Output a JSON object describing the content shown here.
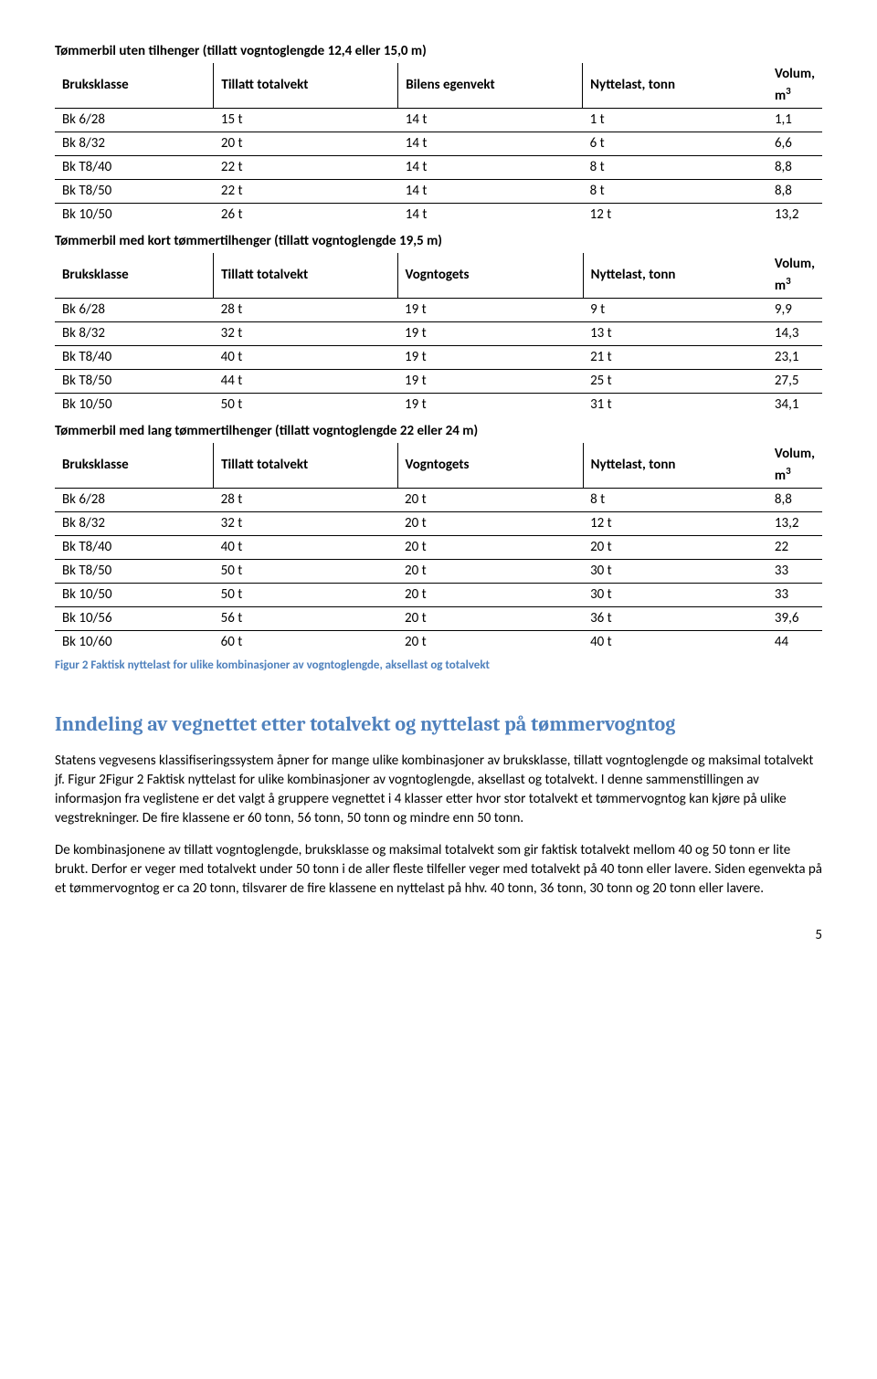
{
  "tables": [
    {
      "title": "Tømmerbil uten tilhenger (tillatt vogntoglengde 12,4 eller 15,0 m)",
      "headers": [
        "Bruksklasse",
        "Tillatt totalvekt",
        "Bilens egenvekt",
        "Nyttelast, tonn",
        "Volum, m"
      ],
      "headerSup": "3",
      "rows": [
        [
          "Bk 6/28",
          "15 t",
          "14 t",
          "1 t",
          "1,1"
        ],
        [
          "Bk 8/32",
          "20 t",
          "14 t",
          "6 t",
          "6,6"
        ],
        [
          "Bk T8/40",
          "22 t",
          "14 t",
          "8 t",
          "8,8"
        ],
        [
          "Bk T8/50",
          "22 t",
          "14 t",
          "8 t",
          "8,8"
        ],
        [
          "Bk 10/50",
          "26 t",
          "14 t",
          "12 t",
          "13,2"
        ]
      ]
    },
    {
      "title": "Tømmerbil med kort tømmertilhenger (tillatt vogntoglengde 19,5 m)",
      "headers": [
        "Bruksklasse",
        "Tillatt totalvekt",
        "Vogntogets",
        "Nyttelast, tonn",
        "Volum, m"
      ],
      "headerSup": "3",
      "rows": [
        [
          "Bk 6/28",
          "28 t",
          "19 t",
          "9 t",
          "9,9"
        ],
        [
          "Bk 8/32",
          "32 t",
          "19 t",
          "13 t",
          "14,3"
        ],
        [
          "Bk T8/40",
          "40 t",
          "19 t",
          "21 t",
          "23,1"
        ],
        [
          "Bk T8/50",
          "44 t",
          "19 t",
          "25 t",
          "27,5"
        ],
        [
          "Bk 10/50",
          "50 t",
          "19 t",
          "31 t",
          "34,1"
        ]
      ]
    },
    {
      "title": "Tømmerbil med lang tømmertilhenger (tillatt vogntoglengde 22 eller 24 m)",
      "headers": [
        "Bruksklasse",
        "Tillatt totalvekt",
        "Vogntogets",
        "Nyttelast, tonn",
        "Volum, m"
      ],
      "headerSup": "3",
      "rows": [
        [
          "Bk 6/28",
          "28 t",
          "20 t",
          "8 t",
          "8,8"
        ],
        [
          "Bk 8/32",
          "32 t",
          "20 t",
          "12 t",
          "13,2"
        ],
        [
          "Bk T8/40",
          "40 t",
          "20 t",
          "20 t",
          "22"
        ],
        [
          "Bk T8/50",
          "50 t",
          "20 t",
          "30 t",
          "33"
        ],
        [
          "Bk 10/50",
          "50 t",
          "20 t",
          "30 t",
          "33"
        ],
        [
          "Bk 10/56",
          "56 t",
          "20 t",
          "36 t",
          "39,6"
        ],
        [
          "Bk 10/60",
          "60 t",
          "20 t",
          "40 t",
          "44"
        ]
      ]
    }
  ],
  "figureCaption": "Figur 2 Faktisk nyttelast for ulike kombinasjoner av vogntoglengde, aksellast og totalvekt",
  "heading": "Inndeling av vegnettet etter totalvekt og nyttelast på tømmervogntog",
  "paragraphs": [
    "Statens vegvesens klassifiseringssystem åpner for mange ulike kombinasjoner av bruksklasse, tillatt vogntoglengde og maksimal totalvekt jf. Figur 2Figur 2 Faktisk nyttelast for ulike kombinasjoner av vogntoglengde, aksellast og totalvekt. I denne sammenstillingen av informasjon fra veglistene er det valgt å gruppere vegnettet i 4 klasser etter hvor stor totalvekt et tømmervogntog kan kjøre på ulike vegstrekninger. De fire klassene er 60 tonn, 56 tonn, 50 tonn og mindre enn 50 tonn.",
    "De kombinasjonene av tillatt vogntoglengde, bruksklasse og maksimal totalvekt som gir faktisk totalvekt mellom 40 og 50 tonn er lite brukt. Derfor er veger med totalvekt under 50 tonn i de aller fleste tilfeller veger med totalvekt på 40 tonn eller lavere. Siden egenvekta på et tømmervogntog er ca 20 tonn, tilsvarer de fire klassene en nyttelast på hhv. 40 tonn, 36 tonn, 30 tonn og 20 tonn eller lavere."
  ],
  "pageNumber": "5",
  "colors": {
    "accent": "#4f81bd",
    "text": "#000000",
    "background": "#ffffff",
    "border": "#000000"
  },
  "typography": {
    "body_font": "Calibri",
    "heading_font": "Cambria",
    "body_size_pt": 11,
    "heading_size_pt": 16,
    "caption_size_pt": 9
  }
}
